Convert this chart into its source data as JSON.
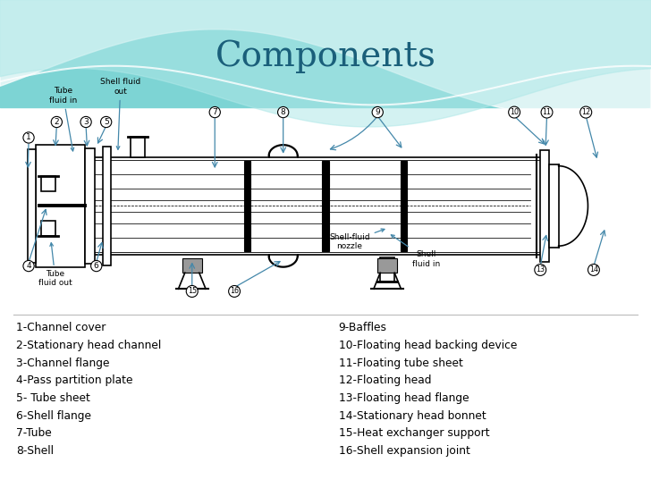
{
  "title": "Components",
  "title_color": "#1a5f7a",
  "title_fontsize": 28,
  "left_labels": [
    "1-Channel cover",
    "2-Stationary head channel",
    "3-Channel flange",
    "4-Pass partition plate",
    "5- Tube sheet",
    "6-Shell flange",
    "7-Tube",
    "8-Shell"
  ],
  "right_labels": [
    "9-Baffles",
    "10-Floating head backing device",
    "11-Floating tube sheet",
    "12-Floating head",
    "13-Floating head flange",
    "14-Stationary head bonnet",
    "15-Heat exchanger support",
    "16-Shell expansion joint"
  ]
}
